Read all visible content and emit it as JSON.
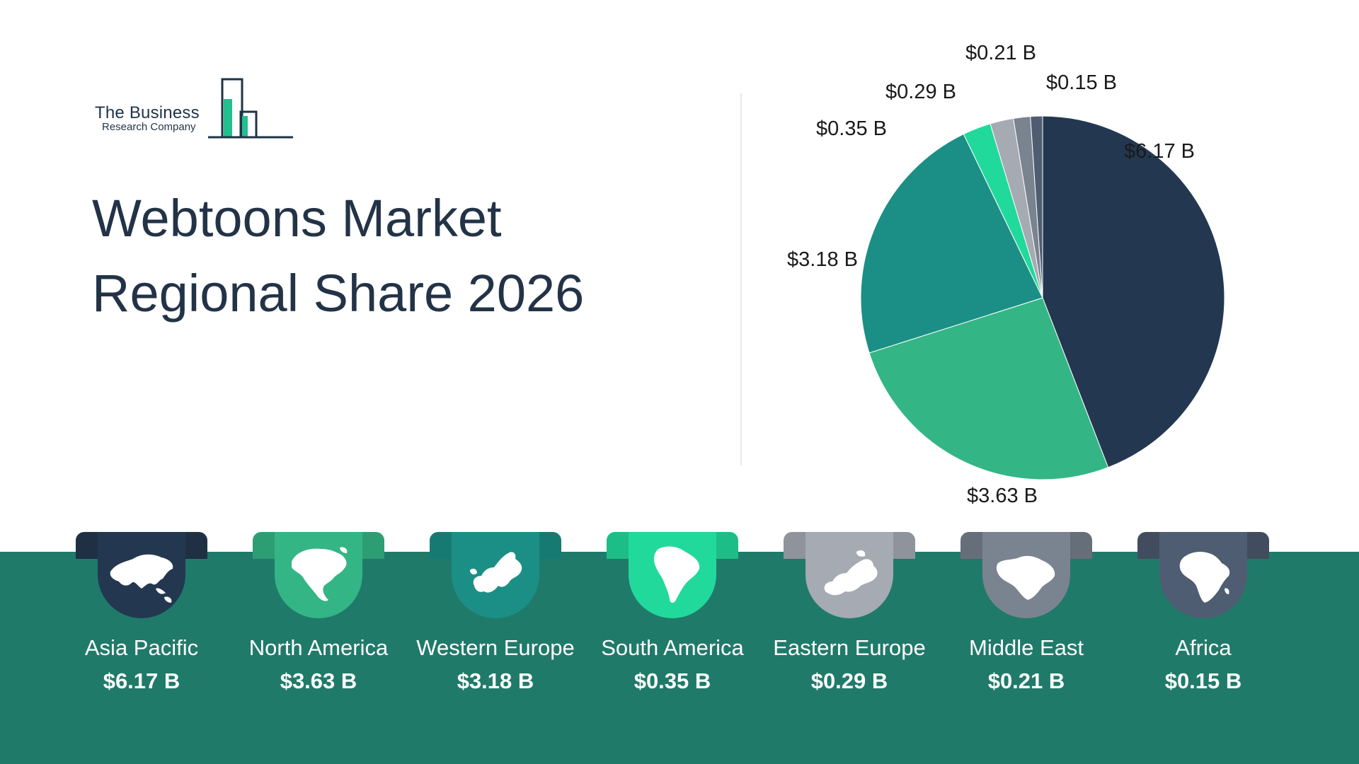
{
  "logo": {
    "line1": "The Business",
    "line2": "Research Company"
  },
  "title": {
    "line1": "Webtoons Market",
    "line2": "Regional Share 2026"
  },
  "colors": {
    "band": "#207a6a",
    "slices": [
      "#233850",
      "#34b586",
      "#1b8f85",
      "#21d99b",
      "#a6aab2",
      "#7a8390",
      "#4f5d72"
    ]
  },
  "chart_data": {
    "type": "pie",
    "title": "Webtoons Market Regional Share 2026",
    "start": "12 o'clock",
    "direction": "clockwise",
    "series": [
      {
        "name": "",
        "categories": [
          "Asia Pacific",
          "North America",
          "Western Europe",
          "South America",
          "Eastern Europe",
          "Middle East",
          "Africa"
        ],
        "values": [
          6.17,
          3.63,
          3.18,
          0.35,
          0.29,
          0.21,
          0.15
        ],
        "labels": [
          "$6.17 B",
          "$3.63 B",
          "$3.18 B",
          "$0.35 B",
          "$0.29 B",
          "$0.21 B",
          "$0.15 B"
        ]
      }
    ]
  },
  "regions": [
    {
      "name": "Asia Pacific",
      "value": "$6.17 B",
      "icon": "asia-map-icon",
      "tab_color": "#1f3044",
      "shield_color": "#233850"
    },
    {
      "name": "North America",
      "value": "$3.63 B",
      "icon": "north-america-map-icon",
      "tab_color": "#2d9e73",
      "shield_color": "#34b586"
    },
    {
      "name": "Western Europe",
      "value": "$3.18 B",
      "icon": "western-europe-map-icon",
      "tab_color": "#177a72",
      "shield_color": "#1b8f85"
    },
    {
      "name": "South America",
      "value": "$0.35 B",
      "icon": "south-america-map-icon",
      "tab_color": "#1dbd87",
      "shield_color": "#21d99b"
    },
    {
      "name": "Eastern Europe",
      "value": "$0.29 B",
      "icon": "eastern-europe-map-icon",
      "tab_color": "#8f939b",
      "shield_color": "#a6aab2"
    },
    {
      "name": "Middle East",
      "value": "$0.21 B",
      "icon": "middle-east-map-icon",
      "tab_color": "#666e7a",
      "shield_color": "#7a8390"
    },
    {
      "name": "Africa",
      "value": "$0.15 B",
      "icon": "africa-map-icon",
      "tab_color": "#414d5f",
      "shield_color": "#4f5d72"
    }
  ]
}
